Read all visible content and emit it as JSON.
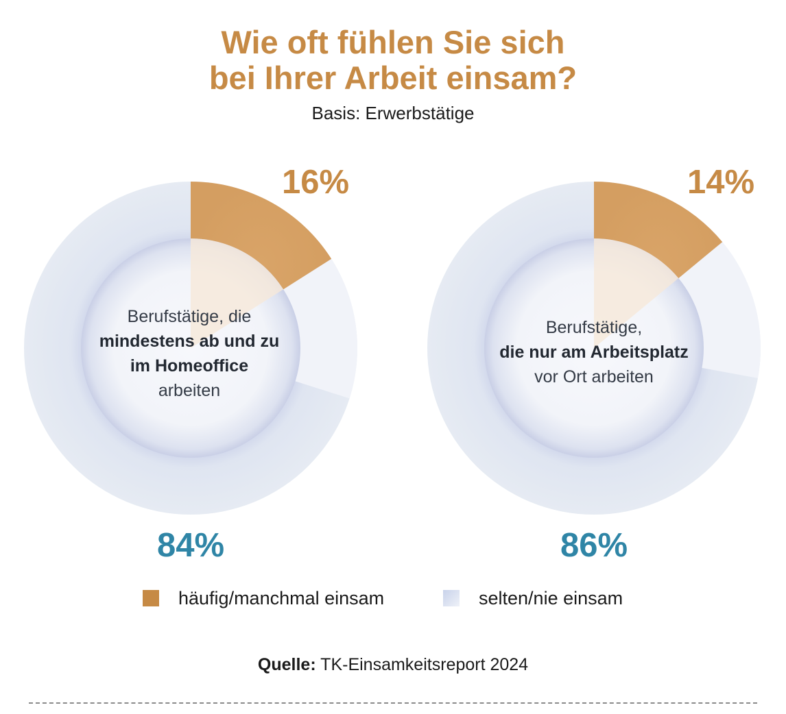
{
  "title_line1": "Wie oft fühlen Sie sich",
  "title_line2": "bei Ihrer Arbeit einsam?",
  "subtitle": "Basis: Erwerbstätige",
  "chart_data": {
    "type": "pie",
    "variant": "donut",
    "categories": [
      "häufig/manchmal einsam",
      "selten/nie einsam"
    ],
    "colors": [
      "#c68a45",
      "#e3e8f2"
    ],
    "charts": [
      {
        "center_text_normal_before": "Berufstätige, die",
        "center_text_bold_1": "mindestens ab und zu",
        "center_text_bold_2": "im Homeoffice",
        "center_text_normal_after": "arbeiten",
        "values": [
          16,
          84
        ],
        "labels": [
          "16%",
          "84%"
        ]
      },
      {
        "center_text_normal_before": "Berufstätige,",
        "center_text_bold_1": "die nur am Arbeitsplatz",
        "center_text_bold_2": "",
        "center_text_normal_after": "vor Ort arbeiten",
        "values": [
          14,
          86
        ],
        "labels": [
          "14%",
          "86%"
        ]
      }
    ]
  },
  "legend": [
    {
      "label": "häufig/manchmal einsam",
      "icon": "orange-square"
    },
    {
      "label": "selten/nie einsam",
      "icon": "light-blue-square"
    }
  ],
  "source_label": "Quelle:",
  "source_text": "TK-Einsamkeitsreport 2024"
}
